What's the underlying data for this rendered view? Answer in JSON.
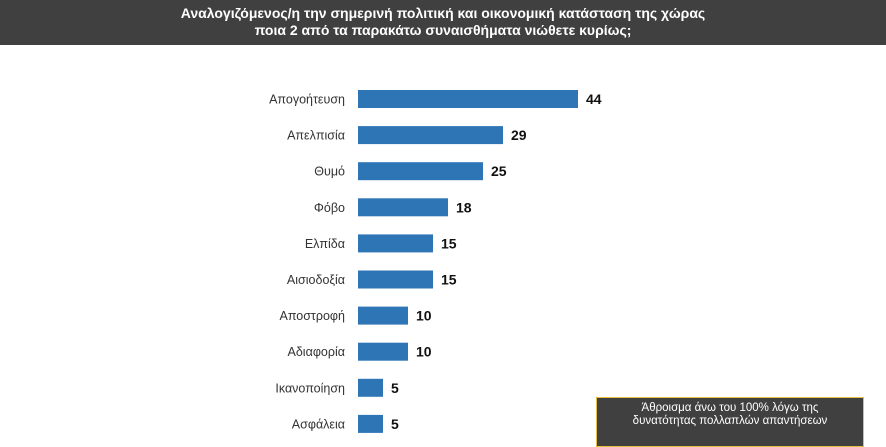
{
  "title_line1": "Αναλογιζόμενος/η την σημερινή πολιτική και οικονομική κατάσταση της χώρας",
  "title_line2": "ποια 2 από τα παρακάτω συναισθήματα νιώθετε κυρίως;",
  "note_line1": "Άθροισμα άνω του 100% λόγω της",
  "note_line2": "δυνατότητας πολλαπλών απαντήσεων",
  "colors": {
    "bar": "#2e75b6",
    "header": "#404040",
    "note_border": "#e8c040"
  },
  "chart_data": {
    "type": "bar",
    "orientation": "horizontal",
    "categories": [
      "Απογοήτευση",
      "Απελπισία",
      "Θυμό",
      "Φόβο",
      "Ελπίδα",
      "Αισιοδοξία",
      "Αποστροφή",
      "Αδιαφορία",
      "Ικανοποίηση",
      "Ασφάλεια"
    ],
    "values": [
      44,
      29,
      25,
      18,
      15,
      15,
      10,
      10,
      5,
      5
    ],
    "grid": false,
    "data_labels": true
  }
}
